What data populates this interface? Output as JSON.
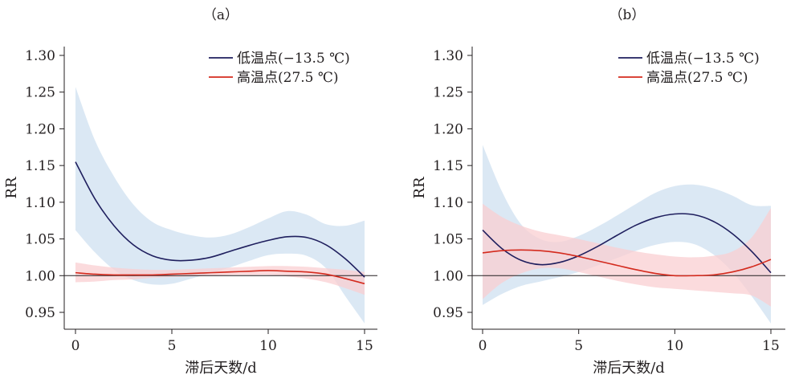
{
  "chart_data": [
    {
      "type": "line",
      "title": "（a）",
      "xlabel": "滞后天数/d",
      "ylabel": "RR",
      "xlim": [
        0,
        15
      ],
      "ylim": [
        0.95,
        1.3
      ],
      "x_ticks": [
        "0",
        "5",
        "10",
        "15"
      ],
      "y_ticks": [
        "0.95",
        "1.00",
        "1.05",
        "1.10",
        "1.15",
        "1.20",
        "1.25",
        "1.30"
      ],
      "reference_line": 1.0,
      "legend_position": "top-right",
      "grid": false,
      "x": [
        0,
        1,
        2,
        3,
        4,
        5,
        6,
        7,
        8,
        9,
        10,
        11,
        12,
        13,
        14,
        15
      ],
      "series": [
        {
          "name": "低温点(−13.5 ℃)",
          "color": "#1f1f5e",
          "band_color": "#cfe0f0",
          "values": [
            1.155,
            1.105,
            1.068,
            1.042,
            1.027,
            1.021,
            1.021,
            1.025,
            1.033,
            1.041,
            1.048,
            1.053,
            1.052,
            1.042,
            1.023,
            0.998
          ],
          "lower": [
            1.062,
            1.032,
            1.008,
            0.994,
            0.988,
            0.989,
            0.996,
            1.003,
            1.011,
            1.02,
            1.028,
            1.03,
            1.027,
            1.01,
            0.972,
            0.935
          ],
          "upper": [
            1.257,
            1.185,
            1.135,
            1.097,
            1.073,
            1.062,
            1.055,
            1.052,
            1.056,
            1.066,
            1.078,
            1.088,
            1.083,
            1.07,
            1.068,
            1.075
          ]
        },
        {
          "name": "高温点(27.5 ℃)",
          "color": "#d42b1e",
          "band_color": "#f9cfd2",
          "values": [
            1.004,
            1.002,
            1.001,
            1.001,
            1.001,
            1.002,
            1.003,
            1.004,
            1.005,
            1.006,
            1.007,
            1.006,
            1.005,
            1.002,
            0.996,
            0.989
          ],
          "lower": [
            0.991,
            0.992,
            0.994,
            0.995,
            0.997,
            0.998,
            0.999,
            1.0,
            1.001,
            1.001,
            1.001,
            0.999,
            0.996,
            0.991,
            0.983,
            0.974
          ],
          "upper": [
            1.018,
            1.014,
            1.011,
            1.009,
            1.008,
            1.008,
            1.009,
            1.01,
            1.011,
            1.012,
            1.013,
            1.013,
            1.012,
            1.01,
            1.008,
            1.005
          ]
        }
      ]
    },
    {
      "type": "line",
      "title": "（b）",
      "xlabel": "滞后天数/d",
      "ylabel": "RR",
      "xlim": [
        0,
        15
      ],
      "ylim": [
        0.95,
        1.3
      ],
      "x_ticks": [
        "0",
        "5",
        "10",
        "15"
      ],
      "y_ticks": [
        "0.95",
        "1.00",
        "1.05",
        "1.10",
        "1.15",
        "1.20",
        "1.25",
        "1.30"
      ],
      "reference_line": 1.0,
      "legend_position": "top-right",
      "grid": false,
      "x": [
        0,
        1,
        2,
        3,
        4,
        5,
        6,
        7,
        8,
        9,
        10,
        11,
        12,
        13,
        14,
        15
      ],
      "series": [
        {
          "name": "低温点(−13.5 ℃)",
          "color": "#1f1f5e",
          "band_color": "#cfe0f0",
          "values": [
            1.062,
            1.037,
            1.021,
            1.015,
            1.018,
            1.027,
            1.04,
            1.055,
            1.069,
            1.079,
            1.084,
            1.083,
            1.074,
            1.057,
            1.033,
            1.004
          ],
          "lower": [
            0.96,
            0.975,
            0.986,
            0.992,
            0.998,
            1.005,
            1.014,
            1.024,
            1.034,
            1.042,
            1.046,
            1.043,
            1.029,
            1.005,
            0.972,
            0.935
          ],
          "upper": [
            1.178,
            1.115,
            1.07,
            1.05,
            1.046,
            1.054,
            1.067,
            1.082,
            1.098,
            1.113,
            1.122,
            1.124,
            1.119,
            1.109,
            1.096,
            1.095
          ]
        },
        {
          "name": "高温点(27.5 ℃)",
          "color": "#d42b1e",
          "band_color": "#f9cfd2",
          "values": [
            1.031,
            1.034,
            1.035,
            1.034,
            1.031,
            1.026,
            1.02,
            1.014,
            1.008,
            1.003,
            1.0,
            1.0,
            1.001,
            1.005,
            1.012,
            1.022
          ],
          "lower": [
            0.968,
            0.99,
            1.003,
            1.01,
            1.01,
            1.005,
            0.999,
            0.993,
            0.988,
            0.984,
            0.982,
            0.98,
            0.978,
            0.976,
            0.973,
            0.958
          ],
          "upper": [
            1.098,
            1.08,
            1.068,
            1.06,
            1.055,
            1.05,
            1.044,
            1.038,
            1.033,
            1.029,
            1.026,
            1.025,
            1.027,
            1.033,
            1.052,
            1.092
          ]
        }
      ]
    }
  ]
}
